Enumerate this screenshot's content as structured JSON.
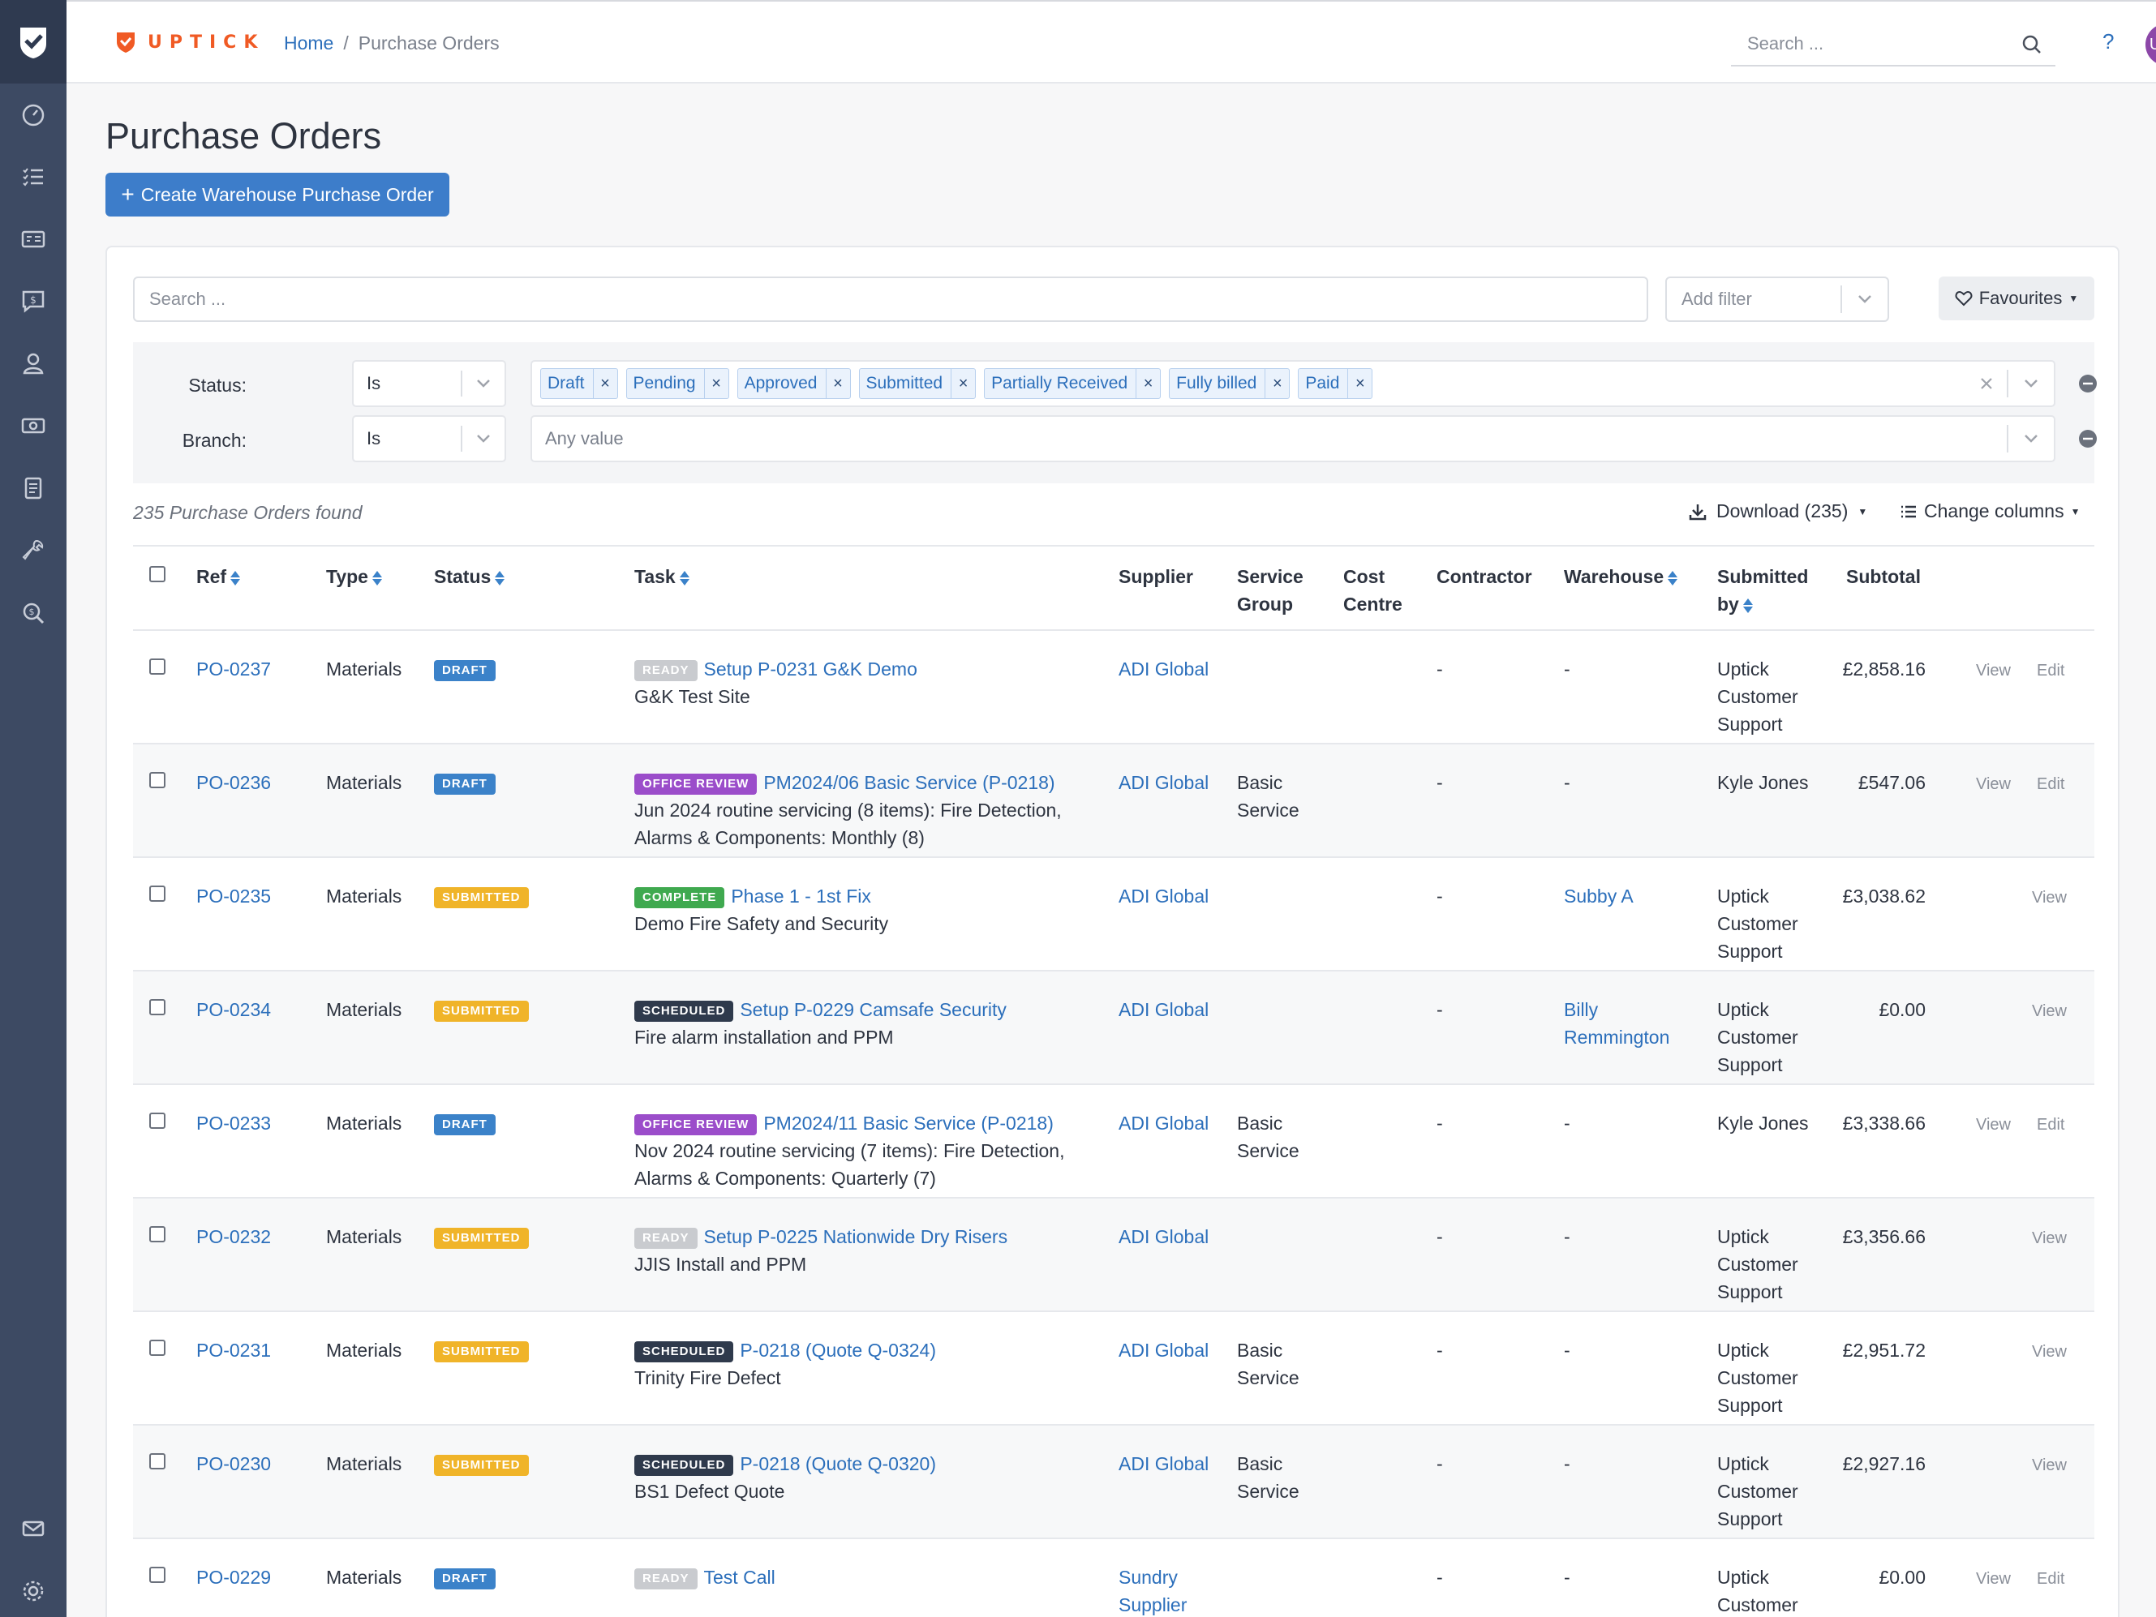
{
  "app": {
    "brand": "UPTICK"
  },
  "breadcrumb": {
    "home": "Home",
    "separator": "/",
    "current": "Purchase Orders"
  },
  "topbar": {
    "search_placeholder": "Search ...",
    "help": "?",
    "avatar": "UCS"
  },
  "sidebar": {
    "icons": [
      "speedometer-icon",
      "checklist-icon",
      "invoice-icon",
      "quote-icon",
      "user-icon",
      "cash-icon",
      "document-icon",
      "wrench-icon",
      "search-money-icon",
      "mail-icon",
      "settings-icon"
    ]
  },
  "page": {
    "title": "Purchase Orders",
    "create_button": "Create Warehouse Purchase Order"
  },
  "toolbar": {
    "search_placeholder": "Search ...",
    "add_filter_placeholder": "Add filter",
    "favourites": "Favourites"
  },
  "filters": {
    "status": {
      "label": "Status:",
      "operator": "Is",
      "values": [
        "Draft",
        "Pending",
        "Approved",
        "Submitted",
        "Partially Received",
        "Fully billed",
        "Paid"
      ]
    },
    "branch": {
      "label": "Branch:",
      "operator": "Is",
      "placeholder": "Any value"
    }
  },
  "results": {
    "count_text": "235 Purchase Orders found",
    "download": "Download (235)",
    "change_columns": "Change columns"
  },
  "table": {
    "headers": {
      "ref": "Ref",
      "type": "Type",
      "status": "Status",
      "task": "Task",
      "supplier": "Supplier",
      "service_group_1": "Service",
      "service_group_2": "Group",
      "cost_centre_1": "Cost",
      "cost_centre_2": "Centre",
      "contractor": "Contractor",
      "warehouse": "Warehouse",
      "submitted_by_1": "Submitted",
      "submitted_by_2": "by",
      "subtotal": "Subtotal"
    },
    "rows": [
      {
        "ref": "PO-0237",
        "type": "Materials",
        "status": "DRAFT",
        "task_status": "READY",
        "task_status_color": "#c9cbcf",
        "task_title": "Setup P-0231 G&K Demo",
        "task_line1": "G&K Test Site",
        "task_line2": "",
        "supplier_1": "ADI Global",
        "supplier_2": "",
        "service_1": "",
        "service_2": "",
        "contractor": "-",
        "warehouse_1": "-",
        "warehouse_2": "",
        "warehouse_link": false,
        "by_1": "Uptick",
        "by_2": "Customer",
        "by_3": "Support",
        "subtotal": "£2,858.16",
        "view": "View",
        "edit": "Edit"
      },
      {
        "ref": "PO-0236",
        "type": "Materials",
        "status": "DRAFT",
        "task_status": "OFFICE REVIEW",
        "task_status_color": "#9b4dca",
        "task_title": "PM2024/06 Basic Service (P-0218)",
        "task_line1": "Jun 2024 routine servicing (8 items): Fire Detection,",
        "task_line2": "Alarms & Components: Monthly (8)",
        "supplier_1": "ADI Global",
        "supplier_2": "",
        "service_1": "Basic",
        "service_2": "Service",
        "contractor": "-",
        "warehouse_1": "-",
        "warehouse_2": "",
        "warehouse_link": false,
        "by_1": "Kyle Jones",
        "by_2": "",
        "by_3": "",
        "subtotal": "£547.06",
        "view": "View",
        "edit": "Edit"
      },
      {
        "ref": "PO-0235",
        "type": "Materials",
        "status": "SUBMITTED",
        "task_status": "COMPLETE",
        "task_status_color": "#3fa94f",
        "task_title": "Phase 1 - 1st Fix",
        "task_line1": "Demo Fire Safety and Security",
        "task_line2": "",
        "supplier_1": "ADI Global",
        "supplier_2": "",
        "service_1": "",
        "service_2": "",
        "contractor": "-",
        "warehouse_1": "Subby A",
        "warehouse_2": "",
        "warehouse_link": true,
        "by_1": "Uptick",
        "by_2": "Customer",
        "by_3": "Support",
        "subtotal": "£3,038.62",
        "view": "View",
        "edit": ""
      },
      {
        "ref": "PO-0234",
        "type": "Materials",
        "status": "SUBMITTED",
        "task_status": "SCHEDULED",
        "task_status_color": "#2f3a4c",
        "task_title": "Setup P-0229 Camsafe Security",
        "task_line1": "Fire alarm installation and PPM",
        "task_line2": "",
        "supplier_1": "ADI Global",
        "supplier_2": "",
        "service_1": "",
        "service_2": "",
        "contractor": "-",
        "warehouse_1": "Billy",
        "warehouse_2": "Remmington",
        "warehouse_link": true,
        "by_1": "Uptick",
        "by_2": "Customer",
        "by_3": "Support",
        "subtotal": "£0.00",
        "view": "View",
        "edit": ""
      },
      {
        "ref": "PO-0233",
        "type": "Materials",
        "status": "DRAFT",
        "task_status": "OFFICE REVIEW",
        "task_status_color": "#9b4dca",
        "task_title": "PM2024/11 Basic Service (P-0218)",
        "task_line1": "Nov 2024 routine servicing (7 items): Fire Detection,",
        "task_line2": "Alarms & Components: Quarterly (7)",
        "supplier_1": "ADI Global",
        "supplier_2": "",
        "service_1": "Basic",
        "service_2": "Service",
        "contractor": "-",
        "warehouse_1": "-",
        "warehouse_2": "",
        "warehouse_link": false,
        "by_1": "Kyle Jones",
        "by_2": "",
        "by_3": "",
        "subtotal": "£3,338.66",
        "view": "View",
        "edit": "Edit"
      },
      {
        "ref": "PO-0232",
        "type": "Materials",
        "status": "SUBMITTED",
        "task_status": "READY",
        "task_status_color": "#c9cbcf",
        "task_title": "Setup P-0225 Nationwide Dry Risers",
        "task_line1": "JJIS Install and PPM",
        "task_line2": "",
        "supplier_1": "ADI Global",
        "supplier_2": "",
        "service_1": "",
        "service_2": "",
        "contractor": "-",
        "warehouse_1": "-",
        "warehouse_2": "",
        "warehouse_link": false,
        "by_1": "Uptick",
        "by_2": "Customer",
        "by_3": "Support",
        "subtotal": "£3,356.66",
        "view": "View",
        "edit": ""
      },
      {
        "ref": "PO-0231",
        "type": "Materials",
        "status": "SUBMITTED",
        "task_status": "SCHEDULED",
        "task_status_color": "#2f3a4c",
        "task_title": "P-0218 (Quote Q-0324)",
        "task_line1": "Trinity Fire Defect",
        "task_line2": "",
        "supplier_1": "ADI Global",
        "supplier_2": "",
        "service_1": "Basic",
        "service_2": "Service",
        "contractor": "-",
        "warehouse_1": "-",
        "warehouse_2": "",
        "warehouse_link": false,
        "by_1": "Uptick",
        "by_2": "Customer",
        "by_3": "Support",
        "subtotal": "£2,951.72",
        "view": "View",
        "edit": ""
      },
      {
        "ref": "PO-0230",
        "type": "Materials",
        "status": "SUBMITTED",
        "task_status": "SCHEDULED",
        "task_status_color": "#2f3a4c",
        "task_title": "P-0218 (Quote Q-0320)",
        "task_line1": "BS1 Defect Quote",
        "task_line2": "",
        "supplier_1": "ADI Global",
        "supplier_2": "",
        "service_1": "Basic",
        "service_2": "Service",
        "contractor": "-",
        "warehouse_1": "-",
        "warehouse_2": "",
        "warehouse_link": false,
        "by_1": "Uptick",
        "by_2": "Customer",
        "by_3": "Support",
        "subtotal": "£2,927.16",
        "view": "View",
        "edit": ""
      },
      {
        "ref": "PO-0229",
        "type": "Materials",
        "status": "DRAFT",
        "task_status": "READY",
        "task_status_color": "#c9cbcf",
        "task_title": "Test Call",
        "task_line1": "",
        "task_line2": "",
        "supplier_1": "Sundry",
        "supplier_2": "Supplier",
        "service_1": "",
        "service_2": "",
        "contractor": "-",
        "warehouse_1": "-",
        "warehouse_2": "",
        "warehouse_link": false,
        "by_1": "Uptick",
        "by_2": "Customer",
        "by_3": "",
        "subtotal": "£0.00",
        "view": "View",
        "edit": "Edit"
      }
    ]
  },
  "colors": {
    "accent": "#3d7dca",
    "link": "#2c6fbb",
    "brand": "#f05a24",
    "rail": "#3d4a63",
    "draft": "#3b82c9",
    "submitted": "#f0b429"
  }
}
